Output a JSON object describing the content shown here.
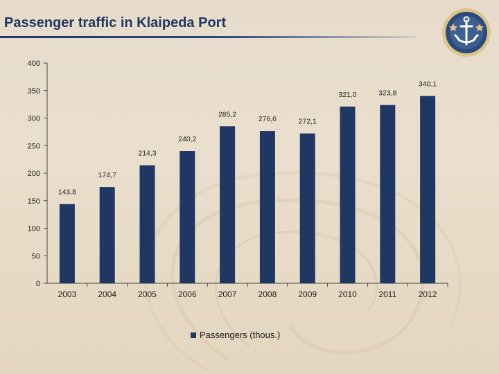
{
  "page": {
    "title": "Passenger traffic in Klaipeda Port"
  },
  "colors": {
    "bar": "#1f3763",
    "axis": "#444444",
    "title": "#1f3763",
    "logo_ring": "#dcc48a"
  },
  "logo": {
    "name": "klaipeda-port-anchor-logo"
  },
  "chart_data": {
    "type": "bar",
    "title": "Passenger traffic in Klaipeda Port",
    "xlabel": "",
    "ylabel": "",
    "ylim": [
      0,
      400
    ],
    "yticks": [
      "0",
      "50",
      "100",
      "150",
      "200",
      "250",
      "300",
      "350",
      "400"
    ],
    "categories": [
      "2003",
      "2004",
      "2005",
      "2006",
      "2007",
      "2008",
      "2009",
      "2010",
      "2011",
      "2012"
    ],
    "series": [
      {
        "name": "Passengers (thous.)",
        "values": [
          143.8,
          174.7,
          214.3,
          240.2,
          285.2,
          276.6,
          272.1,
          321.0,
          323.8,
          340.1
        ],
        "labels": [
          "143,8",
          "174,7",
          "214,3",
          "240,2",
          "285,2",
          "276,6",
          "272,1",
          "321,0",
          "323,8",
          "340,1"
        ]
      }
    ],
    "legend": {
      "position": "bottom-center",
      "label": "Passengers (thous.)"
    },
    "grid": false
  }
}
